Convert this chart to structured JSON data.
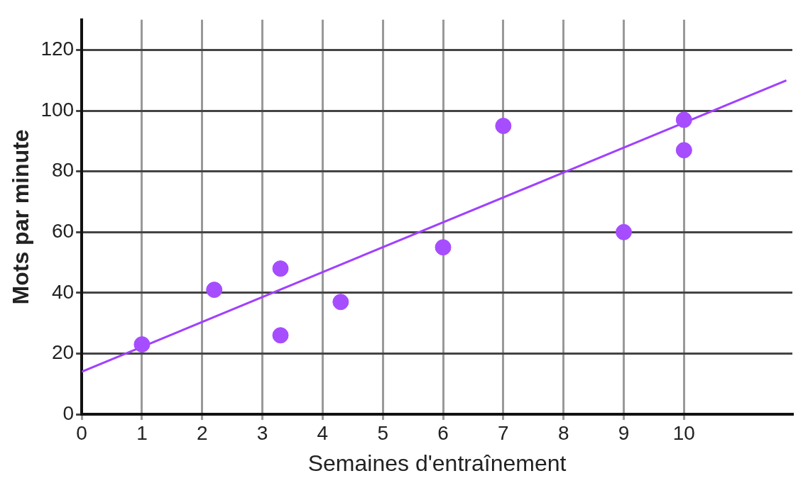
{
  "chart_data": {
    "type": "scatter",
    "xlabel": "Semaines d'entraînement",
    "ylabel": "Mots par minute",
    "series": [
      {
        "color": "#a64dff",
        "marker": "circle",
        "x": [
          1,
          2.2,
          3.3,
          3.3,
          4.3,
          6,
          7,
          9,
          10,
          10
        ],
        "values": [
          23,
          41,
          48,
          26,
          37,
          55,
          95,
          60,
          97,
          87
        ]
      },
      {
        "type": "line",
        "marker": "none",
        "color": "#a040ff",
        "x": [
          0,
          11.7
        ],
        "values": [
          14,
          110
        ]
      }
    ],
    "xlim": [
      0,
      11.8
    ],
    "xticks": [
      0,
      1,
      2,
      3,
      4,
      5,
      6,
      7,
      8,
      9,
      10
    ],
    "ylim": [
      0,
      130
    ],
    "yticks": [
      0,
      20,
      40,
      60,
      80,
      100,
      120
    ],
    "grid": true,
    "legend": false
  }
}
